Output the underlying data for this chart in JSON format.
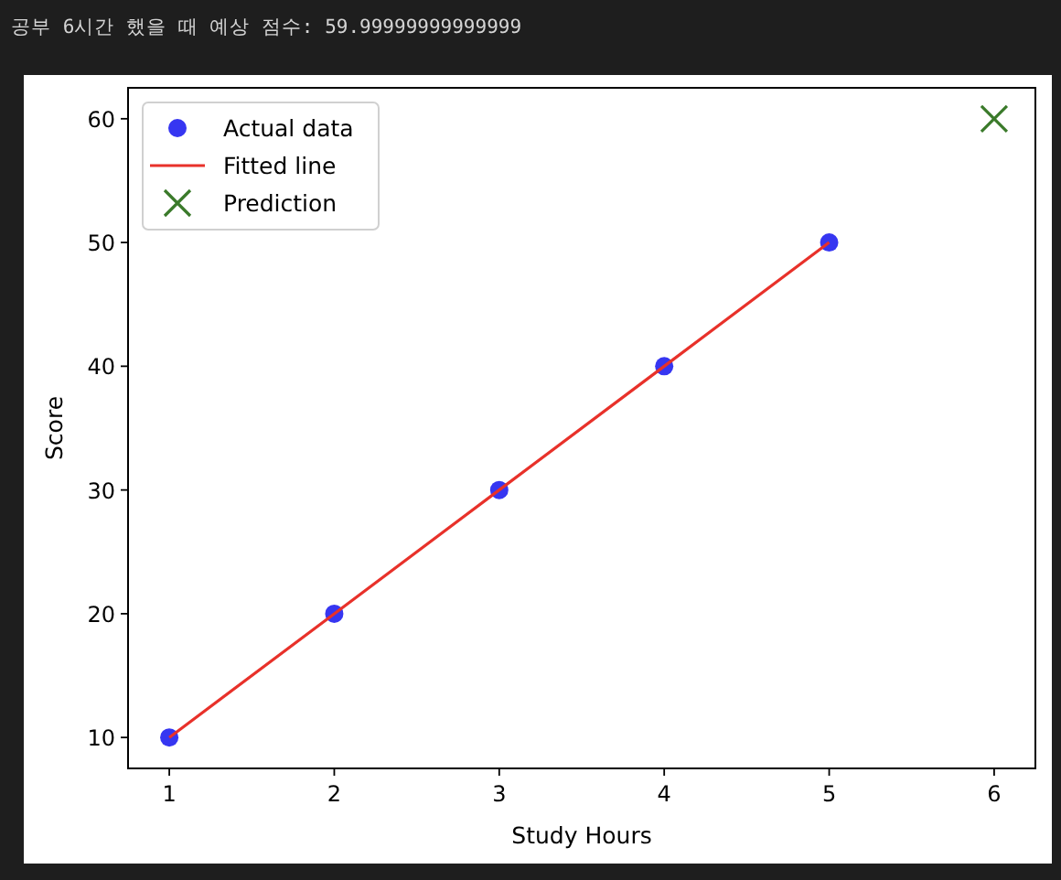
{
  "chart_data": {
    "type": "scatter",
    "xlabel": "Study Hours",
    "ylabel": "Score",
    "annotations": [
      "공부 6시간 했을 때 예상 점수: 59.99999999999999"
    ],
    "xlim": [
      0.75,
      6.25
    ],
    "ylim": [
      7.5,
      62.5
    ],
    "xticks": [
      1,
      2,
      3,
      4,
      5,
      6
    ],
    "yticks": [
      10,
      20,
      30,
      40,
      50,
      60
    ],
    "legend": "top left",
    "grid": false,
    "series": [
      {
        "name": "Actual data",
        "marker": "circle",
        "color": "#2020f0",
        "x": [
          1,
          2,
          3,
          4,
          5
        ],
        "values": [
          10,
          20,
          30,
          40,
          50
        ]
      },
      {
        "name": "Fitted line",
        "type": "line",
        "color": "#e8312a",
        "x": [
          1,
          2,
          3,
          4,
          5
        ],
        "values": [
          10,
          20,
          30,
          40,
          50
        ]
      },
      {
        "name": "Prediction",
        "marker": "cross",
        "color": "#3a7a2a",
        "x": [
          6
        ],
        "values": [
          60
        ]
      }
    ]
  }
}
